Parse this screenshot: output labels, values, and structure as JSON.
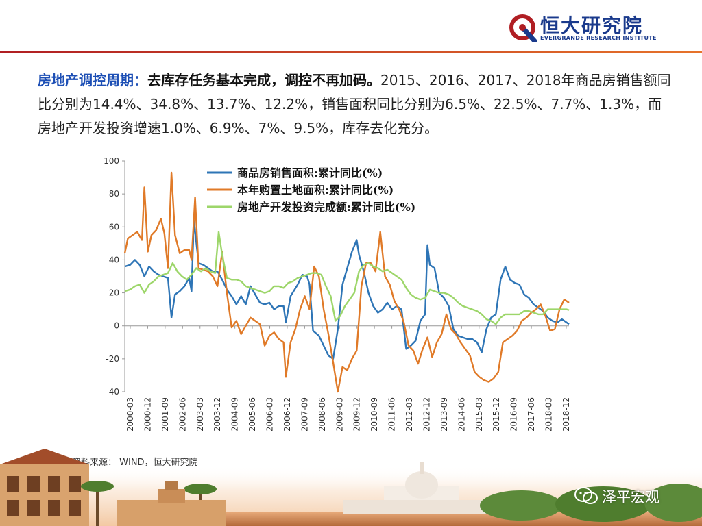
{
  "brand": {
    "name": "恒大研究院",
    "sub": "EVERGRANDE RESEARCH INSTITUTE"
  },
  "paragraph": {
    "highlight": "房地产调控周期：",
    "bold": "去库存任务基本完成，调控不再加码。",
    "text": "2015、2016、2017、2018年商品房销售额同比分别为14.4%、34.8%、13.7%、12.2%，销售面积同比分别为6.5%、22.5%、7.7%、1.3%，而房地产开发投资增速1.0%、6.9%、7%、9.5%，库存去化充分。"
  },
  "source": "资料来源： WIND，恒大研究院",
  "watermark": "泽平宏观",
  "colors": {
    "blue": "#2e75b6",
    "orange": "#e07a28",
    "green": "#9dd66a",
    "brand_red": "#b01e23",
    "brand_blue": "#1a3a8c",
    "highlight": "#1d4fb5"
  },
  "chart_data": {
    "type": "line",
    "ylim": [
      -40,
      100
    ],
    "yticks": [
      -40,
      -20,
      0,
      20,
      40,
      60,
      80,
      100
    ],
    "xlabels": [
      "2000-03",
      "2000-12",
      "2001-09",
      "2002-06",
      "2003-03",
      "2003-12",
      "2004-09",
      "2005-06",
      "2006-03",
      "2006-12",
      "2007-09",
      "2008-06",
      "2009-03",
      "2009-12",
      "2010-09",
      "2011-06",
      "2012-03",
      "2012-12",
      "2013-09",
      "2014-06",
      "2015-03",
      "2015-12",
      "2016-09",
      "2017-06",
      "2018-03",
      "2018-12"
    ],
    "legend_position": "top-left",
    "series": [
      {
        "name": "商品房销售面积:累计同比(%)",
        "color": "#2e75b6",
        "values": [
          [
            2000.17,
            36
          ],
          [
            2000.4,
            37
          ],
          [
            2000.6,
            40
          ],
          [
            2000.8,
            37
          ],
          [
            2001.0,
            30
          ],
          [
            2001.2,
            36
          ],
          [
            2001.4,
            33
          ],
          [
            2001.6,
            31
          ],
          [
            2001.8,
            30
          ],
          [
            2002.0,
            29
          ],
          [
            2002.15,
            5
          ],
          [
            2002.3,
            19
          ],
          [
            2002.5,
            21
          ],
          [
            2002.7,
            24
          ],
          [
            2002.9,
            29
          ],
          [
            2003.0,
            21
          ],
          [
            2003.1,
            64
          ],
          [
            2003.3,
            38
          ],
          [
            2003.5,
            37
          ],
          [
            2003.7,
            35
          ],
          [
            2003.9,
            33
          ],
          [
            2004.1,
            33
          ],
          [
            2004.3,
            28
          ],
          [
            2004.5,
            22
          ],
          [
            2004.7,
            18
          ],
          [
            2004.9,
            13
          ],
          [
            2005.1,
            18
          ],
          [
            2005.3,
            13
          ],
          [
            2005.5,
            24
          ],
          [
            2005.7,
            19
          ],
          [
            2005.9,
            14
          ],
          [
            2006.1,
            13
          ],
          [
            2006.3,
            14
          ],
          [
            2006.5,
            10
          ],
          [
            2006.7,
            12
          ],
          [
            2006.9,
            12
          ],
          [
            2007.0,
            2
          ],
          [
            2007.2,
            18
          ],
          [
            2007.5,
            25
          ],
          [
            2007.7,
            31
          ],
          [
            2007.9,
            30
          ],
          [
            2008.0,
            25
          ],
          [
            2008.15,
            -3
          ],
          [
            2008.4,
            -6
          ],
          [
            2008.6,
            -12
          ],
          [
            2008.8,
            -18
          ],
          [
            2009.0,
            -20
          ],
          [
            2009.2,
            -2
          ],
          [
            2009.4,
            25
          ],
          [
            2009.6,
            35
          ],
          [
            2009.8,
            45
          ],
          [
            2010.0,
            52
          ],
          [
            2010.1,
            43
          ],
          [
            2010.3,
            33
          ],
          [
            2010.5,
            20
          ],
          [
            2010.7,
            12
          ],
          [
            2010.9,
            8
          ],
          [
            2011.1,
            10
          ],
          [
            2011.3,
            14
          ],
          [
            2011.5,
            10
          ],
          [
            2011.7,
            12
          ],
          [
            2011.9,
            10
          ],
          [
            2012.1,
            -14
          ],
          [
            2012.3,
            -12
          ],
          [
            2012.5,
            -9
          ],
          [
            2012.7,
            3
          ],
          [
            2012.9,
            7
          ],
          [
            2013.0,
            49
          ],
          [
            2013.1,
            37
          ],
          [
            2013.3,
            35
          ],
          [
            2013.5,
            20
          ],
          [
            2013.7,
            17
          ],
          [
            2013.9,
            12
          ],
          [
            2014.1,
            -2
          ],
          [
            2014.3,
            -6
          ],
          [
            2014.5,
            -7
          ],
          [
            2014.7,
            -8
          ],
          [
            2014.9,
            -8
          ],
          [
            2015.1,
            -10
          ],
          [
            2015.3,
            -16
          ],
          [
            2015.5,
            -2
          ],
          [
            2015.7,
            5
          ],
          [
            2015.9,
            7
          ],
          [
            2016.1,
            28
          ],
          [
            2016.3,
            36
          ],
          [
            2016.5,
            28
          ],
          [
            2016.7,
            26
          ],
          [
            2016.9,
            25
          ],
          [
            2017.1,
            19
          ],
          [
            2017.3,
            17
          ],
          [
            2017.5,
            13
          ],
          [
            2017.7,
            11
          ],
          [
            2017.9,
            9
          ],
          [
            2018.1,
            5
          ],
          [
            2018.3,
            3
          ],
          [
            2018.5,
            2
          ],
          [
            2018.7,
            4
          ],
          [
            2018.9,
            2
          ],
          [
            2019.0,
            1
          ]
        ]
      },
      {
        "name": "本年购置土地面积:累计同比(%)",
        "color": "#e07a28",
        "values": [
          [
            2000.17,
            44
          ],
          [
            2000.3,
            53
          ],
          [
            2000.5,
            55
          ],
          [
            2000.7,
            57
          ],
          [
            2000.9,
            52
          ],
          [
            2001.0,
            84
          ],
          [
            2001.15,
            45
          ],
          [
            2001.3,
            55
          ],
          [
            2001.5,
            58
          ],
          [
            2001.7,
            65
          ],
          [
            2001.85,
            56
          ],
          [
            2002.0,
            35
          ],
          [
            2002.15,
            93
          ],
          [
            2002.3,
            55
          ],
          [
            2002.5,
            44
          ],
          [
            2002.7,
            46
          ],
          [
            2002.9,
            46
          ],
          [
            2003.0,
            40
          ],
          [
            2003.15,
            78
          ],
          [
            2003.3,
            35
          ],
          [
            2003.5,
            34
          ],
          [
            2003.7,
            33
          ],
          [
            2003.9,
            30
          ],
          [
            2004.1,
            24
          ],
          [
            2004.3,
            45
          ],
          [
            2004.5,
            20
          ],
          [
            2004.7,
            -1
          ],
          [
            2004.9,
            3
          ],
          [
            2005.1,
            -5
          ],
          [
            2005.3,
            0
          ],
          [
            2005.5,
            5
          ],
          [
            2005.7,
            3
          ],
          [
            2005.9,
            1
          ],
          [
            2006.1,
            -12
          ],
          [
            2006.3,
            -6
          ],
          [
            2006.5,
            -4
          ],
          [
            2006.7,
            -8
          ],
          [
            2006.9,
            -10
          ],
          [
            2007.0,
            -31
          ],
          [
            2007.2,
            -10
          ],
          [
            2007.4,
            -2
          ],
          [
            2007.6,
            10
          ],
          [
            2007.8,
            18
          ],
          [
            2008.0,
            10
          ],
          [
            2008.2,
            36
          ],
          [
            2008.4,
            30
          ],
          [
            2008.6,
            10
          ],
          [
            2008.8,
            -5
          ],
          [
            2009.0,
            -22
          ],
          [
            2009.2,
            -40
          ],
          [
            2009.4,
            -25
          ],
          [
            2009.6,
            -27
          ],
          [
            2009.8,
            -20
          ],
          [
            2010.0,
            -15
          ],
          [
            2010.2,
            24
          ],
          [
            2010.4,
            38
          ],
          [
            2010.6,
            38
          ],
          [
            2010.8,
            33
          ],
          [
            2011.0,
            57
          ],
          [
            2011.2,
            30
          ],
          [
            2011.4,
            25
          ],
          [
            2011.6,
            15
          ],
          [
            2011.8,
            10
          ],
          [
            2012.0,
            2
          ],
          [
            2012.2,
            -12
          ],
          [
            2012.4,
            -15
          ],
          [
            2012.6,
            -23
          ],
          [
            2012.8,
            -14
          ],
          [
            2013.0,
            -7
          ],
          [
            2013.2,
            -19
          ],
          [
            2013.4,
            -10
          ],
          [
            2013.6,
            -5
          ],
          [
            2013.8,
            7
          ],
          [
            2014.0,
            -2
          ],
          [
            2014.2,
            -5
          ],
          [
            2014.4,
            -10
          ],
          [
            2014.6,
            -14
          ],
          [
            2014.8,
            -18
          ],
          [
            2015.0,
            -28
          ],
          [
            2015.2,
            -31
          ],
          [
            2015.4,
            -33
          ],
          [
            2015.6,
            -34
          ],
          [
            2015.8,
            -32
          ],
          [
            2016.0,
            -28
          ],
          [
            2016.2,
            -10
          ],
          [
            2016.4,
            -8
          ],
          [
            2016.6,
            -6
          ],
          [
            2016.8,
            -3
          ],
          [
            2017.0,
            3
          ],
          [
            2017.2,
            5
          ],
          [
            2017.4,
            8
          ],
          [
            2017.6,
            10
          ],
          [
            2017.8,
            13
          ],
          [
            2018.0,
            6
          ],
          [
            2018.2,
            -3
          ],
          [
            2018.4,
            -2
          ],
          [
            2018.6,
            10
          ],
          [
            2018.8,
            16
          ],
          [
            2019.0,
            14
          ]
        ]
      },
      {
        "name": "房地产开发投资完成额:累计同比(%)",
        "color": "#9dd66a",
        "values": [
          [
            2000.17,
            21
          ],
          [
            2000.4,
            22
          ],
          [
            2000.6,
            24
          ],
          [
            2000.8,
            25
          ],
          [
            2001.0,
            20
          ],
          [
            2001.2,
            25
          ],
          [
            2001.4,
            27
          ],
          [
            2001.6,
            30
          ],
          [
            2001.8,
            31
          ],
          [
            2002.0,
            32
          ],
          [
            2002.2,
            38
          ],
          [
            2002.4,
            33
          ],
          [
            2002.6,
            30
          ],
          [
            2002.8,
            28
          ],
          [
            2003.0,
            31
          ],
          [
            2003.2,
            35
          ],
          [
            2003.4,
            33
          ],
          [
            2003.6,
            35
          ],
          [
            2003.8,
            33
          ],
          [
            2004.0,
            32
          ],
          [
            2004.15,
            57
          ],
          [
            2004.3,
            43
          ],
          [
            2004.5,
            29
          ],
          [
            2004.7,
            28
          ],
          [
            2004.9,
            28
          ],
          [
            2005.1,
            27
          ],
          [
            2005.3,
            24
          ],
          [
            2005.5,
            23
          ],
          [
            2005.7,
            22
          ],
          [
            2005.9,
            21
          ],
          [
            2006.1,
            20
          ],
          [
            2006.3,
            21
          ],
          [
            2006.5,
            24
          ],
          [
            2006.7,
            24
          ],
          [
            2006.9,
            23
          ],
          [
            2007.1,
            26
          ],
          [
            2007.3,
            27
          ],
          [
            2007.5,
            29
          ],
          [
            2007.7,
            30
          ],
          [
            2007.9,
            31
          ],
          [
            2008.1,
            32
          ],
          [
            2008.3,
            32
          ],
          [
            2008.5,
            31
          ],
          [
            2008.7,
            24
          ],
          [
            2008.9,
            18
          ],
          [
            2009.1,
            3
          ],
          [
            2009.3,
            6
          ],
          [
            2009.5,
            12
          ],
          [
            2009.7,
            16
          ],
          [
            2009.9,
            20
          ],
          [
            2010.1,
            33
          ],
          [
            2010.3,
            37
          ],
          [
            2010.5,
            38
          ],
          [
            2010.7,
            36
          ],
          [
            2010.9,
            35
          ],
          [
            2011.1,
            33
          ],
          [
            2011.3,
            34
          ],
          [
            2011.5,
            32
          ],
          [
            2011.7,
            30
          ],
          [
            2011.9,
            28
          ],
          [
            2012.1,
            23
          ],
          [
            2012.3,
            19
          ],
          [
            2012.5,
            17
          ],
          [
            2012.7,
            16
          ],
          [
            2012.9,
            17
          ],
          [
            2013.1,
            22
          ],
          [
            2013.3,
            21
          ],
          [
            2013.5,
            20
          ],
          [
            2013.7,
            20
          ],
          [
            2013.9,
            19
          ],
          [
            2014.1,
            17
          ],
          [
            2014.3,
            14
          ],
          [
            2014.5,
            12
          ],
          [
            2014.7,
            11
          ],
          [
            2014.9,
            10
          ],
          [
            2015.1,
            9
          ],
          [
            2015.3,
            7
          ],
          [
            2015.5,
            4
          ],
          [
            2015.7,
            3
          ],
          [
            2015.9,
            1
          ],
          [
            2016.1,
            5
          ],
          [
            2016.3,
            7
          ],
          [
            2016.5,
            7
          ],
          [
            2016.7,
            7
          ],
          [
            2016.9,
            7
          ],
          [
            2017.1,
            9
          ],
          [
            2017.3,
            9
          ],
          [
            2017.5,
            8
          ],
          [
            2017.7,
            7
          ],
          [
            2017.9,
            7
          ],
          [
            2018.1,
            10
          ],
          [
            2018.3,
            10
          ],
          [
            2018.5,
            10
          ],
          [
            2018.7,
            10
          ],
          [
            2018.9,
            10
          ],
          [
            2019.0,
            9.5
          ]
        ]
      }
    ]
  }
}
